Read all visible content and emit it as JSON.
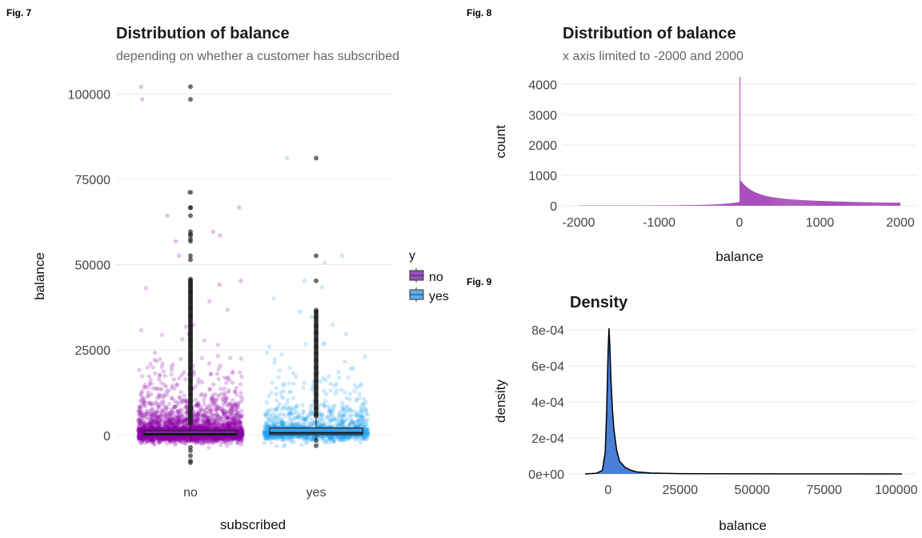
{
  "chart_data": [
    {
      "fig_label": "Fig. 7",
      "type": "scatter",
      "subtype": "jitter+boxplot",
      "title": "Distribution of balance",
      "subtitle": "depending on whether a customer has subscribed",
      "xlabel": "subscribed",
      "ylabel": "balance",
      "categories": [
        "no",
        "yes"
      ],
      "ylim": [
        -8500,
        105000
      ],
      "yticks": [
        0,
        25000,
        50000,
        75000,
        100000
      ],
      "ytick_labels": [
        "0",
        "25000",
        "50000",
        "75000",
        "100000"
      ],
      "grid": "horizontal",
      "legend": {
        "title": "y",
        "placement": "right",
        "entries": [
          "no",
          "yes"
        ]
      },
      "colors": {
        "no": "#8b00a8",
        "yes": "#1e9ef0"
      },
      "series": [
        {
          "name": "no",
          "box": {
            "q1": 72,
            "median": 417,
            "q3": 1345,
            "whisker_low": -1800,
            "whisker_high": 3200
          },
          "outliers": [
            102127,
            98417,
            71188,
            66721,
            66653,
            64343,
            59649,
            58932,
            58544,
            57435,
            56831,
            52587,
            51439,
            45248,
            44134,
            42045,
            40000,
            37127,
            35000,
            32000,
            30000,
            28000,
            26000,
            24000,
            22000,
            20000,
            18000,
            16000,
            14000,
            12000,
            10000,
            8000,
            6000,
            5000,
            4000,
            -3500,
            -4500,
            -6000,
            -7500,
            -8019
          ],
          "scatter_extremes": [
            102127,
            98417,
            71188,
            66721,
            64343,
            59649,
            58544,
            56831,
            52587,
            45248,
            44134
          ]
        },
        {
          "name": "yes",
          "box": {
            "q1": 210,
            "median": 733,
            "q3": 2159,
            "whisker_low": -1500,
            "whisker_high": 5000
          },
          "outliers": [
            81204,
            52587,
            45248,
            36252,
            34646,
            32000,
            30000,
            28000,
            26000,
            24000,
            22000,
            20000,
            18000,
            16000,
            14000,
            12000,
            10000,
            8000,
            6000,
            -1500,
            -3058
          ],
          "scatter_extremes": [
            81204,
            52587,
            45248,
            36252,
            34646
          ]
        }
      ]
    },
    {
      "fig_label": "Fig. 8",
      "type": "bar",
      "subtype": "histogram",
      "title": "Distribution of balance",
      "subtitle": "x axis limited to -2000 and 2000",
      "xlabel": "balance",
      "ylabel": "count",
      "xlim": [
        -2000,
        2000
      ],
      "xticks": [
        -2000,
        -1000,
        0,
        1000,
        2000
      ],
      "xtick_labels": [
        "-2000",
        "-1000",
        "0",
        "1000",
        "2000"
      ],
      "ylim": [
        0,
        4300
      ],
      "yticks": [
        0,
        1000,
        2000,
        3000,
        4000
      ],
      "ytick_labels": [
        "0",
        "1000",
        "2000",
        "3000",
        "4000"
      ],
      "grid": "horizontal",
      "color": "#9b30b0",
      "bins": {
        "start": -2000,
        "width": 10,
        "peak_at": 0,
        "peak_count": 4250
      }
    },
    {
      "fig_label": "Fig. 9",
      "type": "area",
      "subtype": "density",
      "title": "Density",
      "subtitle": "",
      "xlabel": "balance",
      "ylabel": "density",
      "xlim": [
        -8000,
        102000
      ],
      "xticks": [
        0,
        25000,
        50000,
        75000,
        100000
      ],
      "xtick_labels": [
        "0",
        "25000",
        "50000",
        "75000",
        "100000"
      ],
      "ylim": [
        0,
        0.00081
      ],
      "yticks": [
        0,
        0.0002,
        0.0004,
        0.0006,
        0.0008
      ],
      "ytick_labels": [
        "0e+00",
        "2e-04",
        "4e-04",
        "6e-04",
        "8e-04"
      ],
      "grid": "horizontal",
      "fill": "#4a7fd6",
      "points": [
        [
          -8000,
          0
        ],
        [
          -4000,
          4e-06
        ],
        [
          -2000,
          2e-05
        ],
        [
          -1000,
          0.00012
        ],
        [
          -500,
          0.00035
        ],
        [
          0,
          0.00068
        ],
        [
          300,
          0.00081
        ],
        [
          600,
          0.00071
        ],
        [
          1000,
          0.00052
        ],
        [
          1500,
          0.00036
        ],
        [
          2000,
          0.00025
        ],
        [
          3000,
          0.00013
        ],
        [
          4000,
          7e-05
        ],
        [
          6000,
          3.5e-05
        ],
        [
          8000,
          2e-05
        ],
        [
          10000,
          1.1e-05
        ],
        [
          15000,
          5e-06
        ],
        [
          25000,
          2e-06
        ],
        [
          40000,
          8e-07
        ],
        [
          60000,
          4e-07
        ],
        [
          80000,
          3e-07
        ],
        [
          102000,
          1e-07
        ]
      ]
    }
  ]
}
